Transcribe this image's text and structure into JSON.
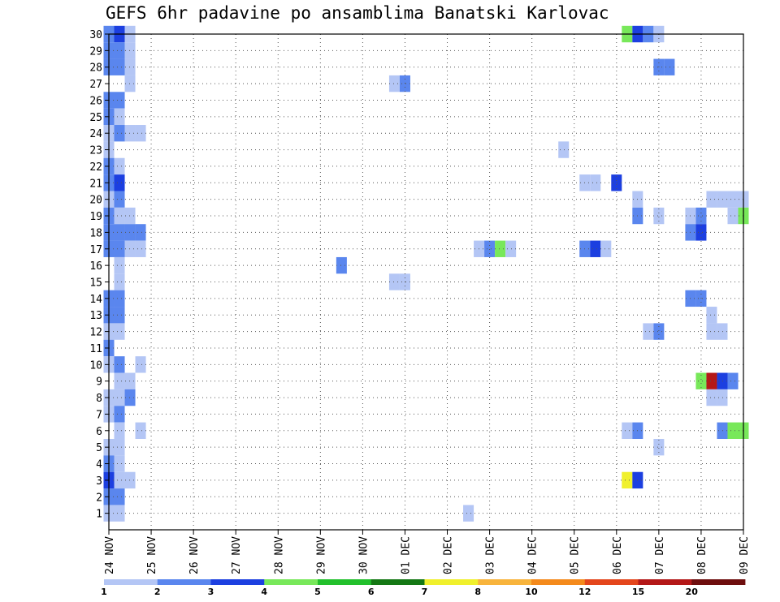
{
  "chart_data": {
    "type": "heatmap",
    "title": "GEFS 6hr padavine po ansamblima Banatski Karlovac",
    "xlabel": "",
    "ylabel": "",
    "x_tick_labels": [
      "24 NOV",
      "25 NOV",
      "26 NOV",
      "27 NOV",
      "28 NOV",
      "29 NOV",
      "30 NOV",
      "01 DEC",
      "02 DEC",
      "03 DEC",
      "04 DEC",
      "05 DEC",
      "06 DEC",
      "07 DEC",
      "08 DEC",
      "09 DEC"
    ],
    "y_tick_labels": [
      "1",
      "2",
      "3",
      "4",
      "5",
      "6",
      "7",
      "8",
      "9",
      "10",
      "11",
      "12",
      "13",
      "14",
      "15",
      "16",
      "17",
      "18",
      "19",
      "20",
      "21",
      "22",
      "23",
      "24",
      "25",
      "26",
      "27",
      "28",
      "29",
      "30"
    ],
    "x_range_steps_6h": [
      0,
      60
    ],
    "y_range_members": [
      0,
      30
    ],
    "grid": true,
    "colorbar": {
      "labels": [
        "1",
        "2",
        "3",
        "4",
        "5",
        "6",
        "7",
        "8",
        "10",
        "12",
        "15",
        "20"
      ],
      "colors": [
        "#b4c6f5",
        "#5a86ee",
        "#1c3fe0",
        "#78e85a",
        "#22c02c",
        "#147814",
        "#f0f02c",
        "#f8b43c",
        "#f48a1c",
        "#e4461c",
        "#b41818",
        "#6e0e0e"
      ],
      "placement": "bottom"
    },
    "cells": [
      {
        "step": 0,
        "member": 30,
        "level": 2
      },
      {
        "step": 1,
        "member": 30,
        "level": 3
      },
      {
        "step": 2,
        "member": 30,
        "level": 1
      },
      {
        "step": 0,
        "member": 29,
        "level": 2
      },
      {
        "step": 1,
        "member": 29,
        "level": 2
      },
      {
        "step": 2,
        "member": 29,
        "level": 1
      },
      {
        "step": 0,
        "member": 28,
        "level": 2
      },
      {
        "step": 1,
        "member": 28,
        "level": 2
      },
      {
        "step": 2,
        "member": 28,
        "level": 1
      },
      {
        "step": 2,
        "member": 27,
        "level": 1
      },
      {
        "step": 0,
        "member": 26,
        "level": 2
      },
      {
        "step": 1,
        "member": 26,
        "level": 2
      },
      {
        "step": 0,
        "member": 25,
        "level": 2
      },
      {
        "step": 1,
        "member": 25,
        "level": 1
      },
      {
        "step": 0,
        "member": 24,
        "level": 1
      },
      {
        "step": 1,
        "member": 24,
        "level": 2
      },
      {
        "step": 2,
        "member": 24,
        "level": 1
      },
      {
        "step": 3,
        "member": 24,
        "level": 1
      },
      {
        "step": 0,
        "member": 23,
        "level": 1
      },
      {
        "step": 0,
        "member": 22,
        "level": 2
      },
      {
        "step": 1,
        "member": 22,
        "level": 1
      },
      {
        "step": 0,
        "member": 21,
        "level": 2
      },
      {
        "step": 1,
        "member": 21,
        "level": 3
      },
      {
        "step": 0,
        "member": 20,
        "level": 1
      },
      {
        "step": 1,
        "member": 20,
        "level": 2
      },
      {
        "step": 0,
        "member": 19,
        "level": 2
      },
      {
        "step": 1,
        "member": 19,
        "level": 1
      },
      {
        "step": 2,
        "member": 19,
        "level": 1
      },
      {
        "step": 0,
        "member": 18,
        "level": 2
      },
      {
        "step": 1,
        "member": 18,
        "level": 2
      },
      {
        "step": 2,
        "member": 18,
        "level": 2
      },
      {
        "step": 3,
        "member": 18,
        "level": 2
      },
      {
        "step": 0,
        "member": 17,
        "level": 2
      },
      {
        "step": 1,
        "member": 17,
        "level": 2
      },
      {
        "step": 2,
        "member": 17,
        "level": 1
      },
      {
        "step": 3,
        "member": 17,
        "level": 1
      },
      {
        "step": 1,
        "member": 16,
        "level": 1
      },
      {
        "step": 1,
        "member": 15,
        "level": 1
      },
      {
        "step": 0,
        "member": 14,
        "level": 2
      },
      {
        "step": 1,
        "member": 14,
        "level": 2
      },
      {
        "step": 0,
        "member": 13,
        "level": 2
      },
      {
        "step": 1,
        "member": 13,
        "level": 2
      },
      {
        "step": 0,
        "member": 12,
        "level": 1
      },
      {
        "step": 1,
        "member": 12,
        "level": 1
      },
      {
        "step": 0,
        "member": 11,
        "level": 2
      },
      {
        "step": 0,
        "member": 10,
        "level": 1
      },
      {
        "step": 1,
        "member": 10,
        "level": 2
      },
      {
        "step": 3,
        "member": 10,
        "level": 1
      },
      {
        "step": 1,
        "member": 9,
        "level": 1
      },
      {
        "step": 2,
        "member": 9,
        "level": 1
      },
      {
        "step": 0,
        "member": 8,
        "level": 1
      },
      {
        "step": 1,
        "member": 8,
        "level": 1
      },
      {
        "step": 2,
        "member": 8,
        "level": 2
      },
      {
        "step": 0,
        "member": 7,
        "level": 1
      },
      {
        "step": 1,
        "member": 7,
        "level": 2
      },
      {
        "step": 1,
        "member": 6,
        "level": 1
      },
      {
        "step": 3,
        "member": 6,
        "level": 1
      },
      {
        "step": 0,
        "member": 5,
        "level": 1
      },
      {
        "step": 1,
        "member": 5,
        "level": 1
      },
      {
        "step": 0,
        "member": 4,
        "level": 2
      },
      {
        "step": 1,
        "member": 4,
        "level": 1
      },
      {
        "step": 0,
        "member": 3,
        "level": 3
      },
      {
        "step": 1,
        "member": 3,
        "level": 1
      },
      {
        "step": 2,
        "member": 3,
        "level": 1
      },
      {
        "step": 0,
        "member": 2,
        "level": 2
      },
      {
        "step": 1,
        "member": 2,
        "level": 2
      },
      {
        "step": 0,
        "member": 1,
        "level": 1
      },
      {
        "step": 1,
        "member": 1,
        "level": 1
      },
      {
        "step": 22,
        "member": 16,
        "level": 2
      },
      {
        "step": 27,
        "member": 27,
        "level": 1
      },
      {
        "step": 28,
        "member": 27,
        "level": 2
      },
      {
        "step": 27,
        "member": 15,
        "level": 1
      },
      {
        "step": 28,
        "member": 15,
        "level": 1
      },
      {
        "step": 34,
        "member": 1,
        "level": 1
      },
      {
        "step": 35,
        "member": 17,
        "level": 1
      },
      {
        "step": 36,
        "member": 17,
        "level": 2
      },
      {
        "step": 37,
        "member": 17,
        "level": 4
      },
      {
        "step": 38,
        "member": 17,
        "level": 1
      },
      {
        "step": 43,
        "member": 23,
        "level": 1
      },
      {
        "step": 45,
        "member": 21,
        "level": 1
      },
      {
        "step": 46,
        "member": 21,
        "level": 1
      },
      {
        "step": 45,
        "member": 17,
        "level": 2
      },
      {
        "step": 46,
        "member": 17,
        "level": 3
      },
      {
        "step": 47,
        "member": 17,
        "level": 1
      },
      {
        "step": 48,
        "member": 21,
        "level": 3
      },
      {
        "step": 49,
        "member": 30,
        "level": 4
      },
      {
        "step": 50,
        "member": 30,
        "level": 3
      },
      {
        "step": 51,
        "member": 30,
        "level": 2
      },
      {
        "step": 52,
        "member": 30,
        "level": 1
      },
      {
        "step": 50,
        "member": 20,
        "level": 1
      },
      {
        "step": 50,
        "member": 19,
        "level": 2
      },
      {
        "step": 49,
        "member": 6,
        "level": 1
      },
      {
        "step": 50,
        "member": 6,
        "level": 2
      },
      {
        "step": 49,
        "member": 3,
        "level": 7
      },
      {
        "step": 50,
        "member": 3,
        "level": 3
      },
      {
        "step": 52,
        "member": 28,
        "level": 2
      },
      {
        "step": 53,
        "member": 28,
        "level": 2
      },
      {
        "step": 52,
        "member": 19,
        "level": 1
      },
      {
        "step": 51,
        "member": 12,
        "level": 1
      },
      {
        "step": 52,
        "member": 12,
        "level": 2
      },
      {
        "step": 52,
        "member": 5,
        "level": 1
      },
      {
        "step": 55,
        "member": 19,
        "level": 1
      },
      {
        "step": 56,
        "member": 19,
        "level": 2
      },
      {
        "step": 55,
        "member": 18,
        "level": 2
      },
      {
        "step": 56,
        "member": 18,
        "level": 3
      },
      {
        "step": 55,
        "member": 14,
        "level": 2
      },
      {
        "step": 56,
        "member": 14,
        "level": 2
      },
      {
        "step": 56,
        "member": 9,
        "level": 4
      },
      {
        "step": 57,
        "member": 9,
        "level": 11
      },
      {
        "step": 58,
        "member": 9,
        "level": 3
      },
      {
        "step": 59,
        "member": 9,
        "level": 2
      },
      {
        "step": 57,
        "member": 20,
        "level": 1
      },
      {
        "step": 58,
        "member": 20,
        "level": 1
      },
      {
        "step": 59,
        "member": 20,
        "level": 1
      },
      {
        "step": 60,
        "member": 20,
        "level": 1
      },
      {
        "step": 59,
        "member": 19,
        "level": 1
      },
      {
        "step": 60,
        "member": 19,
        "level": 4
      },
      {
        "step": 57,
        "member": 13,
        "level": 1
      },
      {
        "step": 57,
        "member": 12,
        "level": 1
      },
      {
        "step": 58,
        "member": 12,
        "level": 1
      },
      {
        "step": 57,
        "member": 8,
        "level": 1
      },
      {
        "step": 58,
        "member": 8,
        "level": 1
      },
      {
        "step": 58,
        "member": 6,
        "level": 2
      },
      {
        "step": 59,
        "member": 6,
        "level": 4
      },
      {
        "step": 60,
        "member": 6,
        "level": 4
      }
    ]
  }
}
